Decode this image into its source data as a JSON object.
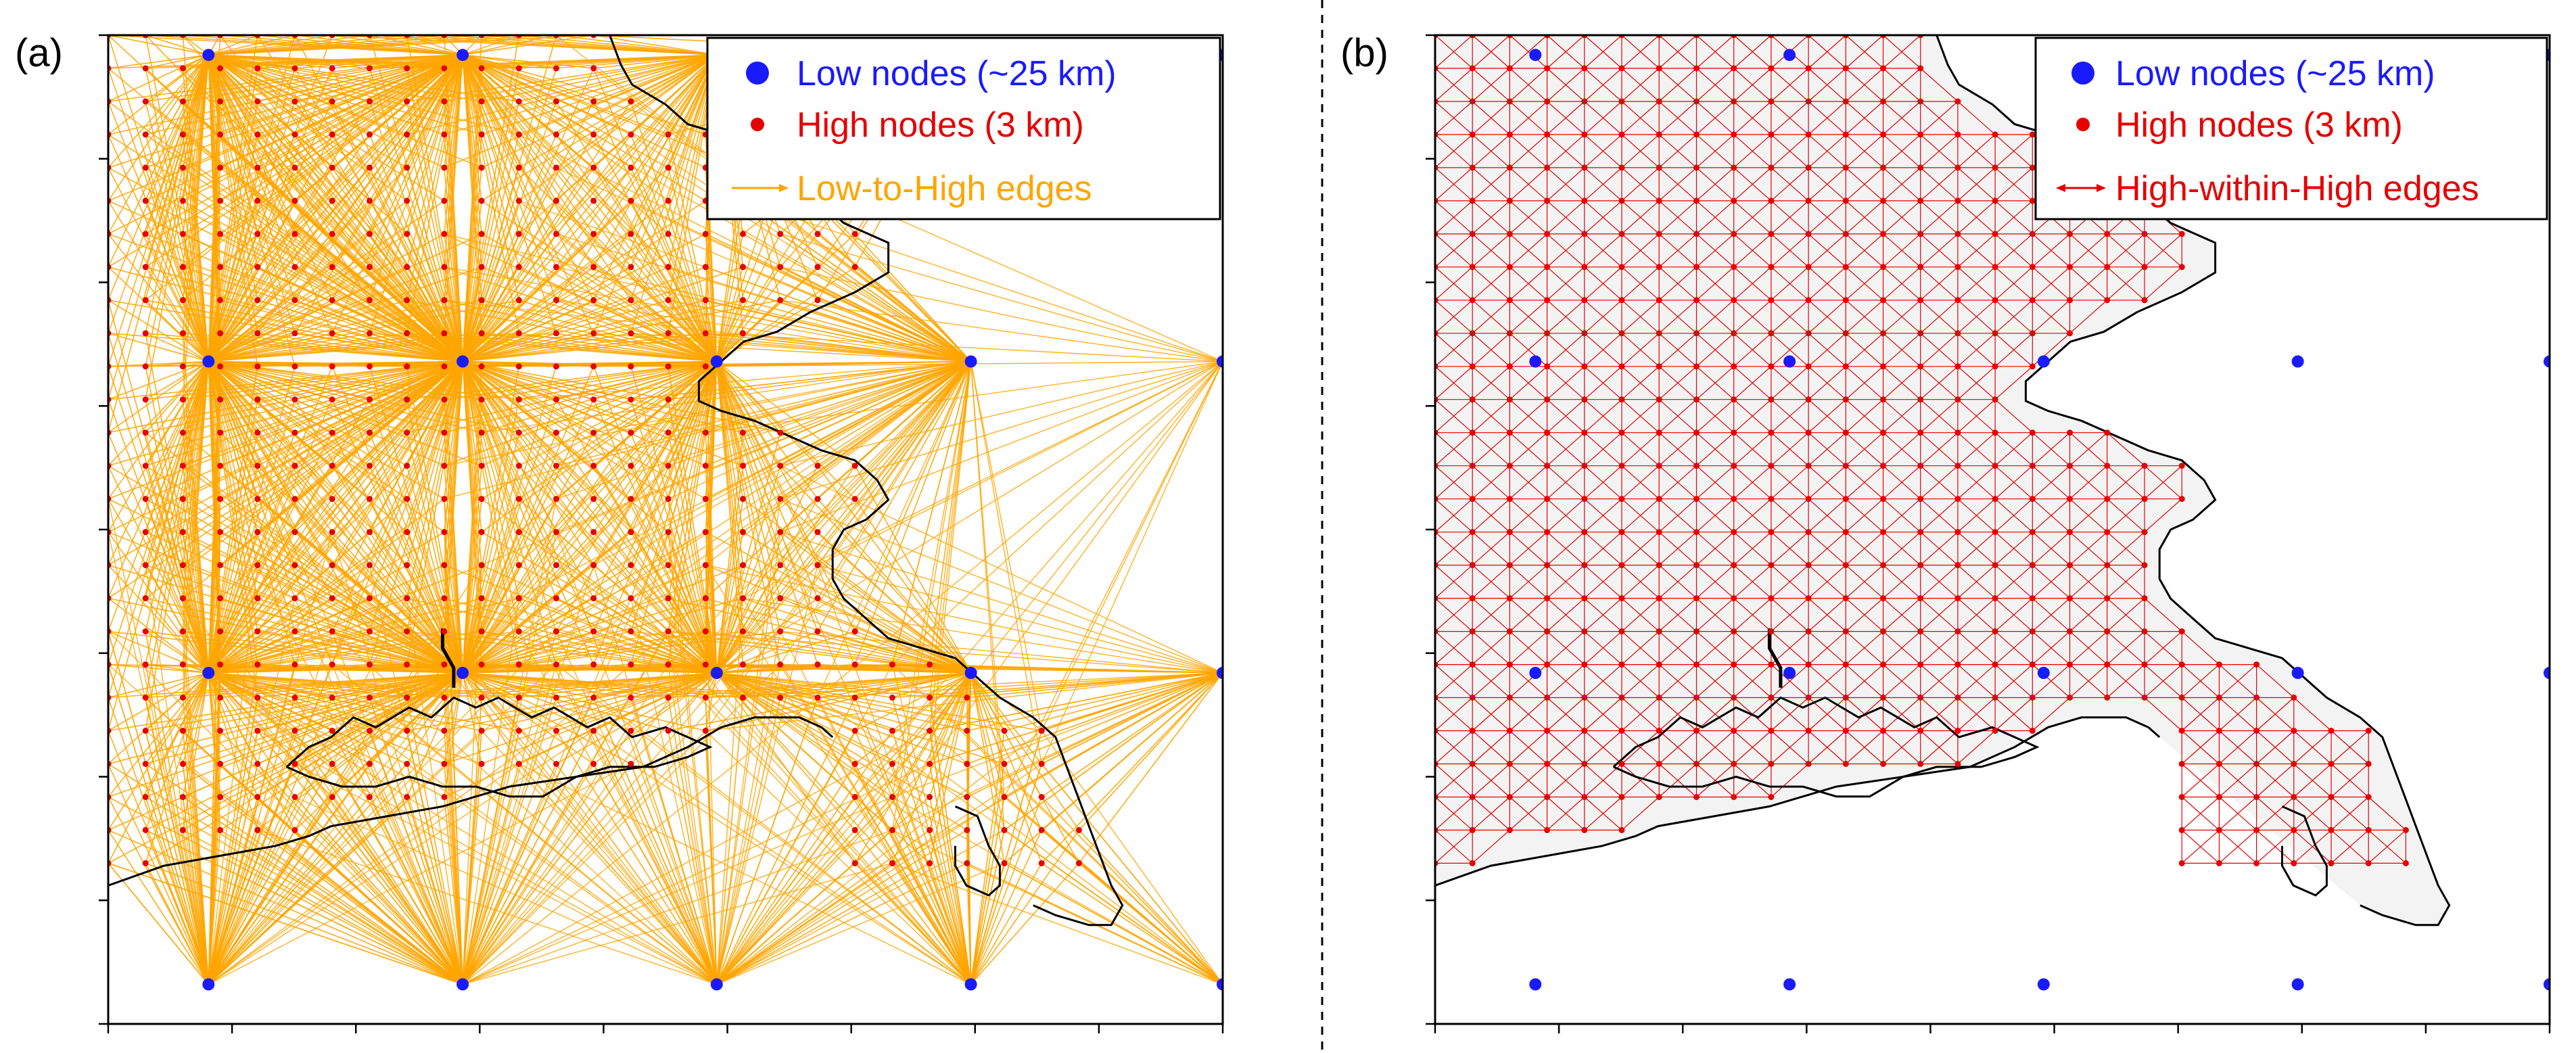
{
  "panels": [
    {
      "label": "(a)",
      "legend": [
        {
          "text": "Low nodes (~25 km)",
          "color": "#1a1aff",
          "symbol": "large-dot"
        },
        {
          "text": "High nodes (3 km)",
          "color": "#e60000",
          "symbol": "small-dot"
        },
        {
          "text": "Low-to-High edges",
          "color": "#ffa500",
          "symbol": "arrow"
        }
      ]
    },
    {
      "label": "(b)",
      "legend": [
        {
          "text": "Low nodes (~25 km)",
          "color": "#1a1aff",
          "symbol": "large-dot"
        },
        {
          "text": "High nodes (3 km)",
          "color": "#e60000",
          "symbol": "small-dot"
        },
        {
          "text": "High-within-High edges",
          "color": "#e60000",
          "symbol": "double-arrow"
        }
      ]
    }
  ],
  "colors": {
    "low_node": "#1a1aff",
    "high_node": "#e60000",
    "low_to_high_edge": "#ffa500",
    "high_within_high_edge": "#e60000",
    "coastline": "#000000",
    "land_fill": "#f3f3f3"
  }
}
